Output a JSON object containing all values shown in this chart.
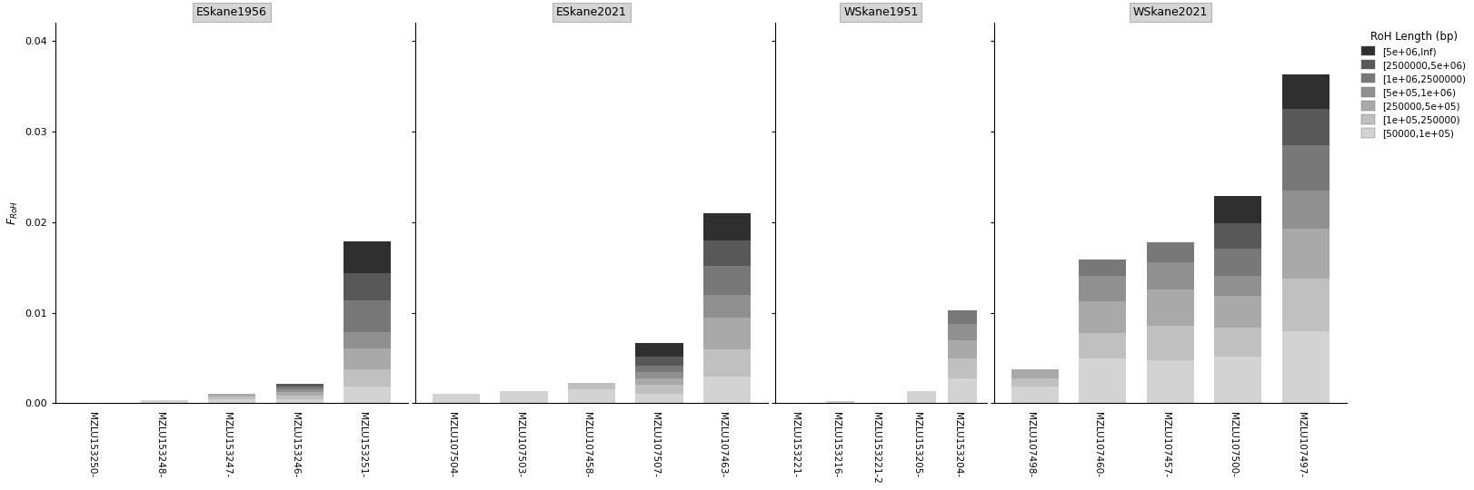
{
  "panels": [
    {
      "name": "ESkane1956",
      "samples": [
        "MZLU153250-",
        "MZLU153248-",
        "MZLU153247-",
        "MZLU153246-",
        "MZLU153251-"
      ],
      "values": {
        "50000_1e05": [
          0.0,
          0.0003,
          0.0005,
          0.0005,
          0.002
        ],
        "1e05_250000": [
          0.0,
          0.0,
          0.0003,
          0.0004,
          0.002
        ],
        "250000_5e05": [
          0.0,
          0.0,
          0.0003,
          0.0005,
          0.0025
        ],
        "5e05_1e06": [
          0.0,
          0.0,
          0.0,
          0.0003,
          0.002
        ],
        "1e06_2500000": [
          0.0,
          0.0,
          0.0,
          0.0003,
          0.004
        ],
        "2500000_5e06": [
          0.0,
          0.0,
          0.0,
          0.0003,
          0.003
        ],
        "5e06_Inf": [
          0.0,
          0.0,
          0.0,
          0.0,
          0.0033
        ]
      }
    },
    {
      "name": "ESkane2021",
      "samples": [
        "MZLU107504-",
        "MZLU107503-",
        "MZLU107458-",
        "MZLU107507-",
        "MZLU107463-"
      ],
      "values": {
        "50000_1e05": [
          0.001,
          0.0015,
          0.002,
          0.001,
          0.0035
        ],
        "1e05_250000": [
          0.0,
          0.0,
          0.001,
          0.001,
          0.003
        ],
        "250000_5e05": [
          0.0,
          0.0,
          0.0008,
          0.001,
          0.004
        ],
        "5e05_1e06": [
          0.0,
          0.0,
          0.0,
          0.0008,
          0.0025
        ],
        "1e06_2500000": [
          0.0,
          0.0,
          0.0,
          0.0009,
          0.0035
        ],
        "2500000_5e06": [
          0.0,
          0.0,
          0.0,
          0.001,
          0.003
        ],
        "5e06_Inf": [
          0.0,
          0.0,
          0.0,
          0.0015,
          0.0035
        ]
      }
    },
    {
      "name": "WSkane1951",
      "samples": [
        "MZLU153221-",
        "MZLU153216-",
        "MZLU153221-",
        "MZLU153205-",
        "MZLU153204-"
      ],
      "values": {
        "50000_1e05": [
          0.0,
          0.0002,
          0.0,
          0.0015,
          0.0035
        ],
        "1e05_250000": [
          0.0,
          0.0,
          0.0,
          0.0,
          0.0025
        ],
        "250000_5e05": [
          0.0,
          0.0,
          0.0,
          0.0,
          0.002
        ],
        "5e05_1e06": [
          0.0,
          0.0,
          0.0,
          0.0,
          0.0015
        ],
        "1e06_2500000": [
          0.0,
          0.0,
          0.0,
          0.0,
          0.0015
        ],
        "2500000_5e06": [
          0.0,
          0.0,
          0.0,
          0.0,
          0.0
        ],
        "5e06_Inf": [
          0.0,
          0.0,
          0.0,
          0.0,
          0.0
        ]
      }
    },
    {
      "name": "WSkane2021",
      "samples": [
        "MZLU107498-",
        "MZLU107460-",
        "MZLU107457-",
        "MZLU107500-",
        "MZLU107497-"
      ],
      "values": {
        "50000_1e05": [
          0.002,
          0.006,
          0.0055,
          0.006,
          0.0095
        ],
        "1e05_250000": [
          0.001,
          0.003,
          0.004,
          0.0035,
          0.0065
        ],
        "250000_5e05": [
          0.001,
          0.004,
          0.0045,
          0.004,
          0.006
        ],
        "5e05_1e06": [
          0.0,
          0.003,
          0.0035,
          0.0025,
          0.0045
        ],
        "1e06_2500000": [
          0.0,
          0.002,
          0.0025,
          0.0035,
          0.0055
        ],
        "2500000_5e06": [
          0.0,
          0.0,
          0.0,
          0.003,
          0.0045
        ],
        "5e06_Inf": [
          0.0,
          0.0,
          0.0,
          0.0035,
          0.004
        ]
      }
    }
  ],
  "segment_colors": {
    "50000_1e05": "#d3d3d3",
    "1e05_250000": "#c0c0c0",
    "250000_5e05": "#a9a9a9",
    "5e05_1e06": "#909090",
    "1e06_2500000": "#787878",
    "2500000_5e06": "#585858",
    "5e06_Inf": "#2f2f2f"
  },
  "legend_labels": {
    "5e06_Inf": "[5e+06,Inf)",
    "2500000_5e06": "[2500000,5e+06)",
    "1e06_2500000": "[1e+06,2500000)",
    "5e05_1e06": "[5e+05,1e+06)",
    "250000_5e05": "[250000,5e+05)",
    "1e05_250000": "[1e+05,250000)",
    "50000_1e05": "[50000,1e+05)"
  },
  "ylabel": "F_RoH",
  "ylim": [
    0.0,
    0.042
  ],
  "yticks": [
    0.0,
    0.01,
    0.02,
    0.03,
    0.04
  ],
  "background_color": "#ffffff",
  "panel_header_color": "#d4d4d4",
  "bar_width": 0.7
}
